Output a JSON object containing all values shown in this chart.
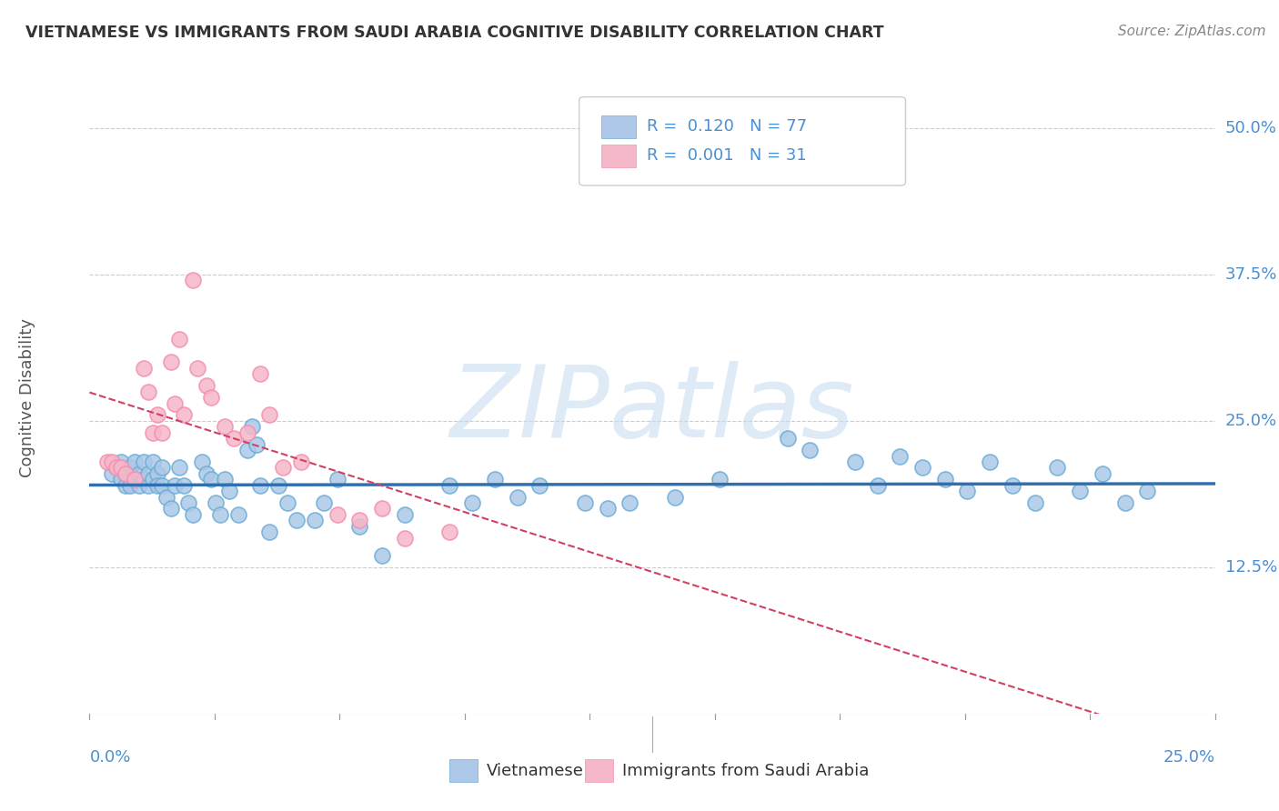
{
  "title": "VIETNAMESE VS IMMIGRANTS FROM SAUDI ARABIA COGNITIVE DISABILITY CORRELATION CHART",
  "source": "Source: ZipAtlas.com",
  "ylabel": "Cognitive Disability",
  "ytick_labels": [
    "12.5%",
    "25.0%",
    "37.5%",
    "50.0%"
  ],
  "ytick_values": [
    0.125,
    0.25,
    0.375,
    0.5
  ],
  "xlim": [
    0.0,
    0.25
  ],
  "ylim": [
    0.0,
    0.54
  ],
  "legend_blue_label": "R =  0.120   N = 77",
  "legend_pink_label": "R =  0.001   N = 31",
  "legend_bottom_blue": "Vietnamese",
  "legend_bottom_pink": "Immigrants from Saudi Arabia",
  "blue_color": "#adc8e8",
  "pink_color": "#f5b8c8",
  "blue_edge_color": "#6baed6",
  "pink_edge_color": "#f48fb1",
  "blue_line_color": "#3070b0",
  "pink_line_color": "#d04060",
  "background_color": "#ffffff",
  "grid_color": "#cccccc",
  "watermark": "ZIPatlas",
  "label_color": "#4a8fd4",
  "title_color": "#333333",
  "source_color": "#888888",
  "vietnamese_x": [
    0.005,
    0.006,
    0.007,
    0.007,
    0.008,
    0.008,
    0.009,
    0.009,
    0.01,
    0.01,
    0.011,
    0.011,
    0.012,
    0.012,
    0.013,
    0.013,
    0.014,
    0.014,
    0.015,
    0.015,
    0.016,
    0.016,
    0.017,
    0.018,
    0.019,
    0.02,
    0.021,
    0.022,
    0.023,
    0.025,
    0.026,
    0.027,
    0.028,
    0.029,
    0.03,
    0.031,
    0.033,
    0.035,
    0.036,
    0.037,
    0.038,
    0.04,
    0.042,
    0.044,
    0.046,
    0.05,
    0.052,
    0.055,
    0.06,
    0.065,
    0.07,
    0.08,
    0.085,
    0.09,
    0.095,
    0.1,
    0.11,
    0.115,
    0.12,
    0.13,
    0.14,
    0.155,
    0.16,
    0.17,
    0.175,
    0.18,
    0.185,
    0.19,
    0.195,
    0.2,
    0.205,
    0.21,
    0.215,
    0.22,
    0.225,
    0.23,
    0.235
  ],
  "vietnamese_y": [
    0.205,
    0.21,
    0.2,
    0.215,
    0.195,
    0.205,
    0.195,
    0.21,
    0.2,
    0.215,
    0.205,
    0.195,
    0.2,
    0.215,
    0.195,
    0.205,
    0.2,
    0.215,
    0.205,
    0.195,
    0.195,
    0.21,
    0.185,
    0.175,
    0.195,
    0.21,
    0.195,
    0.18,
    0.17,
    0.215,
    0.205,
    0.2,
    0.18,
    0.17,
    0.2,
    0.19,
    0.17,
    0.225,
    0.245,
    0.23,
    0.195,
    0.155,
    0.195,
    0.18,
    0.165,
    0.165,
    0.18,
    0.2,
    0.16,
    0.135,
    0.17,
    0.195,
    0.18,
    0.2,
    0.185,
    0.195,
    0.18,
    0.175,
    0.18,
    0.185,
    0.2,
    0.235,
    0.225,
    0.215,
    0.195,
    0.22,
    0.21,
    0.2,
    0.19,
    0.215,
    0.195,
    0.18,
    0.21,
    0.19,
    0.205,
    0.18,
    0.19
  ],
  "saudi_x": [
    0.004,
    0.005,
    0.006,
    0.007,
    0.008,
    0.01,
    0.012,
    0.013,
    0.014,
    0.015,
    0.016,
    0.018,
    0.019,
    0.02,
    0.021,
    0.023,
    0.024,
    0.026,
    0.027,
    0.03,
    0.032,
    0.035,
    0.038,
    0.04,
    0.043,
    0.047,
    0.055,
    0.06,
    0.065,
    0.07,
    0.08
  ],
  "saudi_y": [
    0.215,
    0.215,
    0.21,
    0.21,
    0.205,
    0.2,
    0.295,
    0.275,
    0.24,
    0.255,
    0.24,
    0.3,
    0.265,
    0.32,
    0.255,
    0.37,
    0.295,
    0.28,
    0.27,
    0.245,
    0.235,
    0.24,
    0.29,
    0.255,
    0.21,
    0.215,
    0.17,
    0.165,
    0.175,
    0.15,
    0.155
  ]
}
